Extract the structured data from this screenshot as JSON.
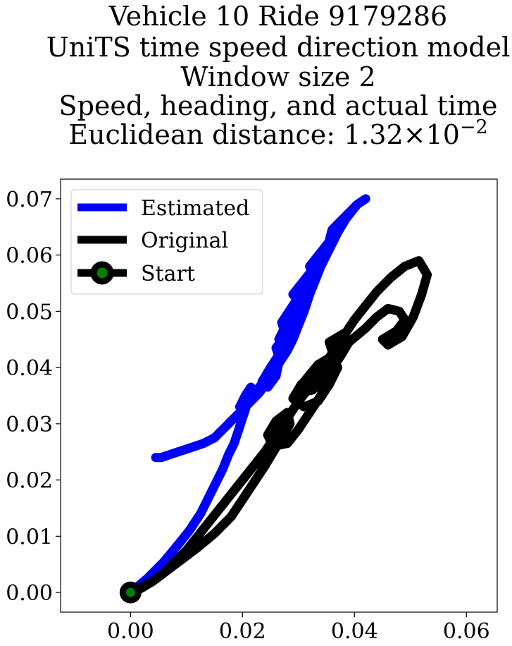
{
  "chart_data": {
    "type": "line",
    "title_lines": [
      "Vehicle 10 Ride 9179286",
      "UniTS time speed direction model",
      "Window size 2",
      "Speed, heading, and actual time"
    ],
    "title_metric_prefix": "Euclidean distance: ",
    "title_metric_value": "1.32",
    "title_metric_times": "×",
    "title_metric_base": "10",
    "title_metric_exponent": "−2",
    "xlim": [
      -0.0125,
      0.0655
    ],
    "ylim": [
      -0.0035,
      0.0735
    ],
    "xticks": [
      0.0,
      0.02,
      0.04,
      0.06
    ],
    "xtick_labels": [
      "0.00",
      "0.02",
      "0.04",
      "0.06"
    ],
    "yticks": [
      0.0,
      0.01,
      0.02,
      0.03,
      0.04,
      0.05,
      0.06,
      0.07
    ],
    "ytick_labels": [
      "0.00",
      "0.01",
      "0.02",
      "0.03",
      "0.04",
      "0.05",
      "0.06",
      "0.07"
    ],
    "grid": false,
    "legend_position": "top-left",
    "series": [
      {
        "name": "Estimated",
        "color": "#0000ff",
        "x": [
          0.0,
          0.003,
          0.006,
          0.0085,
          0.0105,
          0.0115,
          0.0125,
          0.0135,
          0.0145,
          0.0155,
          0.0165,
          0.0175,
          0.0185,
          0.019,
          0.0195,
          0.02,
          0.0205,
          0.021,
          0.0215,
          0.0205,
          0.0195,
          0.021,
          0.023,
          0.025,
          0.0265,
          0.026,
          0.0245,
          0.0235,
          0.025,
          0.027,
          0.0285,
          0.028,
          0.0265,
          0.026,
          0.028,
          0.03,
          0.031,
          0.0295,
          0.0275,
          0.0265,
          0.0285,
          0.03,
          0.029,
          0.0275,
          0.027,
          0.029,
          0.0305,
          0.032,
          0.0315,
          0.03,
          0.029,
          0.031,
          0.033,
          0.0345,
          0.034,
          0.0325,
          0.032,
          0.034,
          0.036,
          0.0375,
          0.037,
          0.0355,
          0.036,
          0.038,
          0.0395,
          0.0405,
          0.042,
          0.0405,
          0.0385,
          0.037,
          0.0355,
          0.034,
          0.033,
          0.032,
          0.031,
          0.03,
          0.029,
          0.028,
          0.027,
          0.026,
          0.025,
          0.024,
          0.023,
          0.022,
          0.021,
          0.02,
          0.019,
          0.018,
          0.017,
          0.016,
          0.015,
          0.014,
          0.013,
          0.0115,
          0.01,
          0.0085,
          0.007,
          0.0055,
          0.0045
        ],
        "y": [
          0.0,
          0.0025,
          0.0055,
          0.0085,
          0.011,
          0.0125,
          0.014,
          0.016,
          0.018,
          0.02,
          0.022,
          0.0245,
          0.0265,
          0.028,
          0.0295,
          0.031,
          0.0325,
          0.0345,
          0.0365,
          0.035,
          0.033,
          0.034,
          0.0365,
          0.039,
          0.041,
          0.0385,
          0.0365,
          0.0375,
          0.04,
          0.043,
          0.0455,
          0.044,
          0.042,
          0.0435,
          0.046,
          0.049,
          0.051,
          0.0495,
          0.047,
          0.045,
          0.047,
          0.05,
          0.0485,
          0.0465,
          0.048,
          0.051,
          0.0535,
          0.0555,
          0.054,
          0.052,
          0.053,
          0.0555,
          0.058,
          0.06,
          0.0585,
          0.0565,
          0.058,
          0.0605,
          0.063,
          0.065,
          0.064,
          0.0625,
          0.0645,
          0.0665,
          0.068,
          0.069,
          0.07,
          0.069,
          0.0665,
          0.064,
          0.061,
          0.058,
          0.0555,
          0.053,
          0.05,
          0.0475,
          0.045,
          0.043,
          0.0415,
          0.04,
          0.0385,
          0.037,
          0.0355,
          0.0345,
          0.0335,
          0.0325,
          0.0315,
          0.0305,
          0.0295,
          0.0285,
          0.0275,
          0.027,
          0.0265,
          0.026,
          0.0255,
          0.025,
          0.0245,
          0.024,
          0.024
        ]
      },
      {
        "name": "Original",
        "color": "#000000",
        "x": [
          0.0,
          0.004,
          0.008,
          0.012,
          0.015,
          0.018,
          0.02,
          0.022,
          0.024,
          0.0255,
          0.027,
          0.0285,
          0.028,
          0.026,
          0.0245,
          0.0255,
          0.028,
          0.03,
          0.032,
          0.034,
          0.035,
          0.033,
          0.0305,
          0.029,
          0.031,
          0.0335,
          0.0355,
          0.037,
          0.036,
          0.0335,
          0.031,
          0.03,
          0.0325,
          0.0355,
          0.0375,
          0.039,
          0.038,
          0.0355,
          0.036,
          0.039,
          0.042,
          0.044,
          0.046,
          0.048,
          0.049,
          0.0475,
          0.045,
          0.046,
          0.0485,
          0.0505,
          0.052,
          0.053,
          0.0515,
          0.049,
          0.0465,
          0.044,
          0.042,
          0.04,
          0.038,
          0.036,
          0.034,
          0.032,
          0.03,
          0.028,
          0.026,
          0.024,
          0.022,
          0.02,
          0.018,
          0.016,
          0.014,
          0.012,
          0.01,
          0.008,
          0.006,
          0.004,
          0.002,
          0.0005
        ],
        "y": [
          0.0,
          0.002,
          0.005,
          0.008,
          0.0105,
          0.0135,
          0.0165,
          0.0195,
          0.0225,
          0.025,
          0.0275,
          0.03,
          0.032,
          0.0305,
          0.028,
          0.026,
          0.0265,
          0.029,
          0.032,
          0.035,
          0.0375,
          0.039,
          0.037,
          0.0345,
          0.033,
          0.034,
          0.037,
          0.04,
          0.042,
          0.0405,
          0.0375,
          0.0355,
          0.036,
          0.039,
          0.042,
          0.0445,
          0.046,
          0.0445,
          0.043,
          0.0445,
          0.047,
          0.049,
          0.0505,
          0.05,
          0.0485,
          0.0465,
          0.045,
          0.044,
          0.0455,
          0.049,
          0.053,
          0.0565,
          0.059,
          0.058,
          0.056,
          0.0535,
          0.051,
          0.0485,
          0.0455,
          0.0425,
          0.0395,
          0.0365,
          0.034,
          0.031,
          0.028,
          0.025,
          0.0225,
          0.02,
          0.0175,
          0.015,
          0.0125,
          0.01,
          0.0075,
          0.0055,
          0.0035,
          0.002,
          0.0008,
          0.0
        ]
      }
    ],
    "start_point": {
      "name": "Start",
      "x": 0.0,
      "y": 0.0,
      "marker_color": "#008000",
      "edge_color": "#000000"
    },
    "legend": [
      {
        "label": "Estimated",
        "color": "#0000ff",
        "marker": false
      },
      {
        "label": "Original",
        "color": "#000000",
        "marker": false
      },
      {
        "label": "Start",
        "color": "#000000",
        "marker": true,
        "marker_color": "#008000"
      }
    ]
  }
}
